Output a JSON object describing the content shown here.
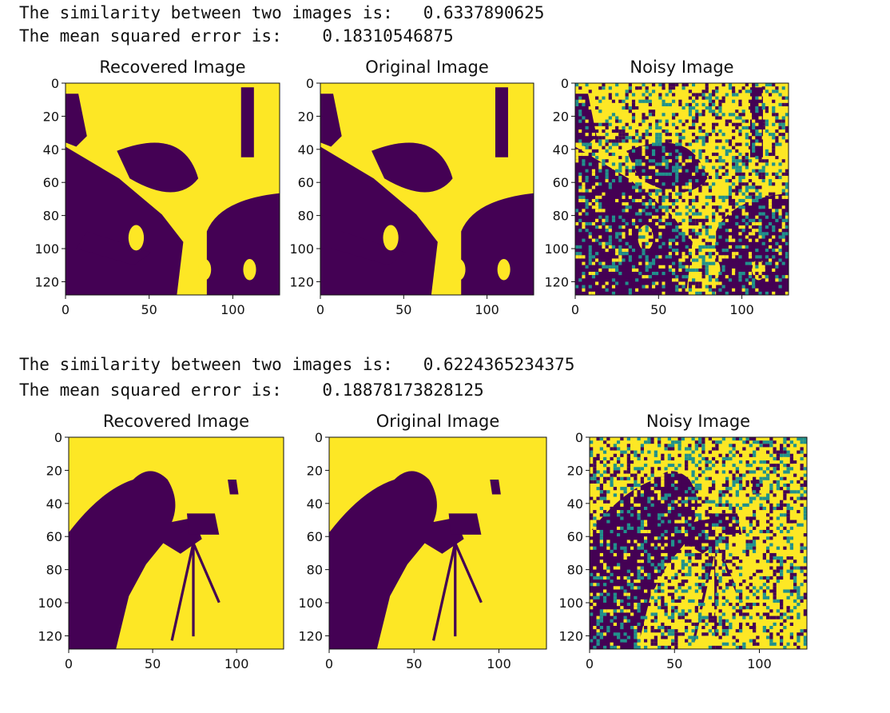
{
  "output_blocks": [
    {
      "similarity_label": "The similarity between two images is:",
      "similarity_value": "0.6337890625",
      "mse_label": "The mean squared error is:",
      "mse_value": "0.18310546875"
    },
    {
      "similarity_label": "The similarity between two images is:",
      "similarity_value": "0.6224365234375",
      "mse_label": "The mean squared error is:",
      "mse_value": "0.18878173828125"
    }
  ],
  "colors": {
    "dark": "#440154",
    "bright": "#fde725",
    "noise": "#21918c",
    "axis": "#111111",
    "background": "#ffffff"
  },
  "chart_data": [
    {
      "type": "heatmap",
      "figure": 1,
      "title": "Recovered Image",
      "xticks": [
        0,
        50,
        100
      ],
      "yticks": [
        0,
        20,
        40,
        60,
        80,
        100,
        120
      ],
      "xlim": [
        0,
        128
      ],
      "ylim": [
        128,
        0
      ],
      "colormap": "viridis",
      "grid": false,
      "legend": "none"
    },
    {
      "type": "heatmap",
      "figure": 1,
      "title": "Original Image",
      "xticks": [
        0,
        50,
        100
      ],
      "yticks": [
        0,
        20,
        40,
        60,
        80,
        100,
        120
      ],
      "xlim": [
        0,
        128
      ],
      "ylim": [
        128,
        0
      ],
      "colormap": "viridis",
      "grid": false,
      "legend": "none"
    },
    {
      "type": "heatmap",
      "figure": 1,
      "title": "Noisy Image",
      "xticks": [
        0,
        50,
        100
      ],
      "yticks": [
        0,
        20,
        40,
        60,
        80,
        100,
        120
      ],
      "xlim": [
        0,
        128
      ],
      "ylim": [
        128,
        0
      ],
      "colormap": "viridis",
      "grid": false,
      "legend": "none"
    },
    {
      "type": "heatmap",
      "figure": 2,
      "title": "Recovered Image",
      "xticks": [
        0,
        50,
        100
      ],
      "yticks": [
        0,
        20,
        40,
        60,
        80,
        100,
        120
      ],
      "xlim": [
        0,
        128
      ],
      "ylim": [
        128,
        0
      ],
      "colormap": "viridis",
      "grid": false,
      "legend": "none"
    },
    {
      "type": "heatmap",
      "figure": 2,
      "title": "Original Image",
      "xticks": [
        0,
        50,
        100
      ],
      "yticks": [
        0,
        20,
        40,
        60,
        80,
        100,
        120
      ],
      "xlim": [
        0,
        128
      ],
      "ylim": [
        128,
        0
      ],
      "colormap": "viridis",
      "grid": false,
      "legend": "none"
    },
    {
      "type": "heatmap",
      "figure": 2,
      "title": "Noisy Image",
      "xticks": [
        0,
        50,
        100
      ],
      "yticks": [
        0,
        20,
        40,
        60,
        80,
        100,
        120
      ],
      "xlim": [
        0,
        128
      ],
      "ylim": [
        128,
        0
      ],
      "colormap": "viridis",
      "grid": false,
      "legend": "none"
    }
  ]
}
